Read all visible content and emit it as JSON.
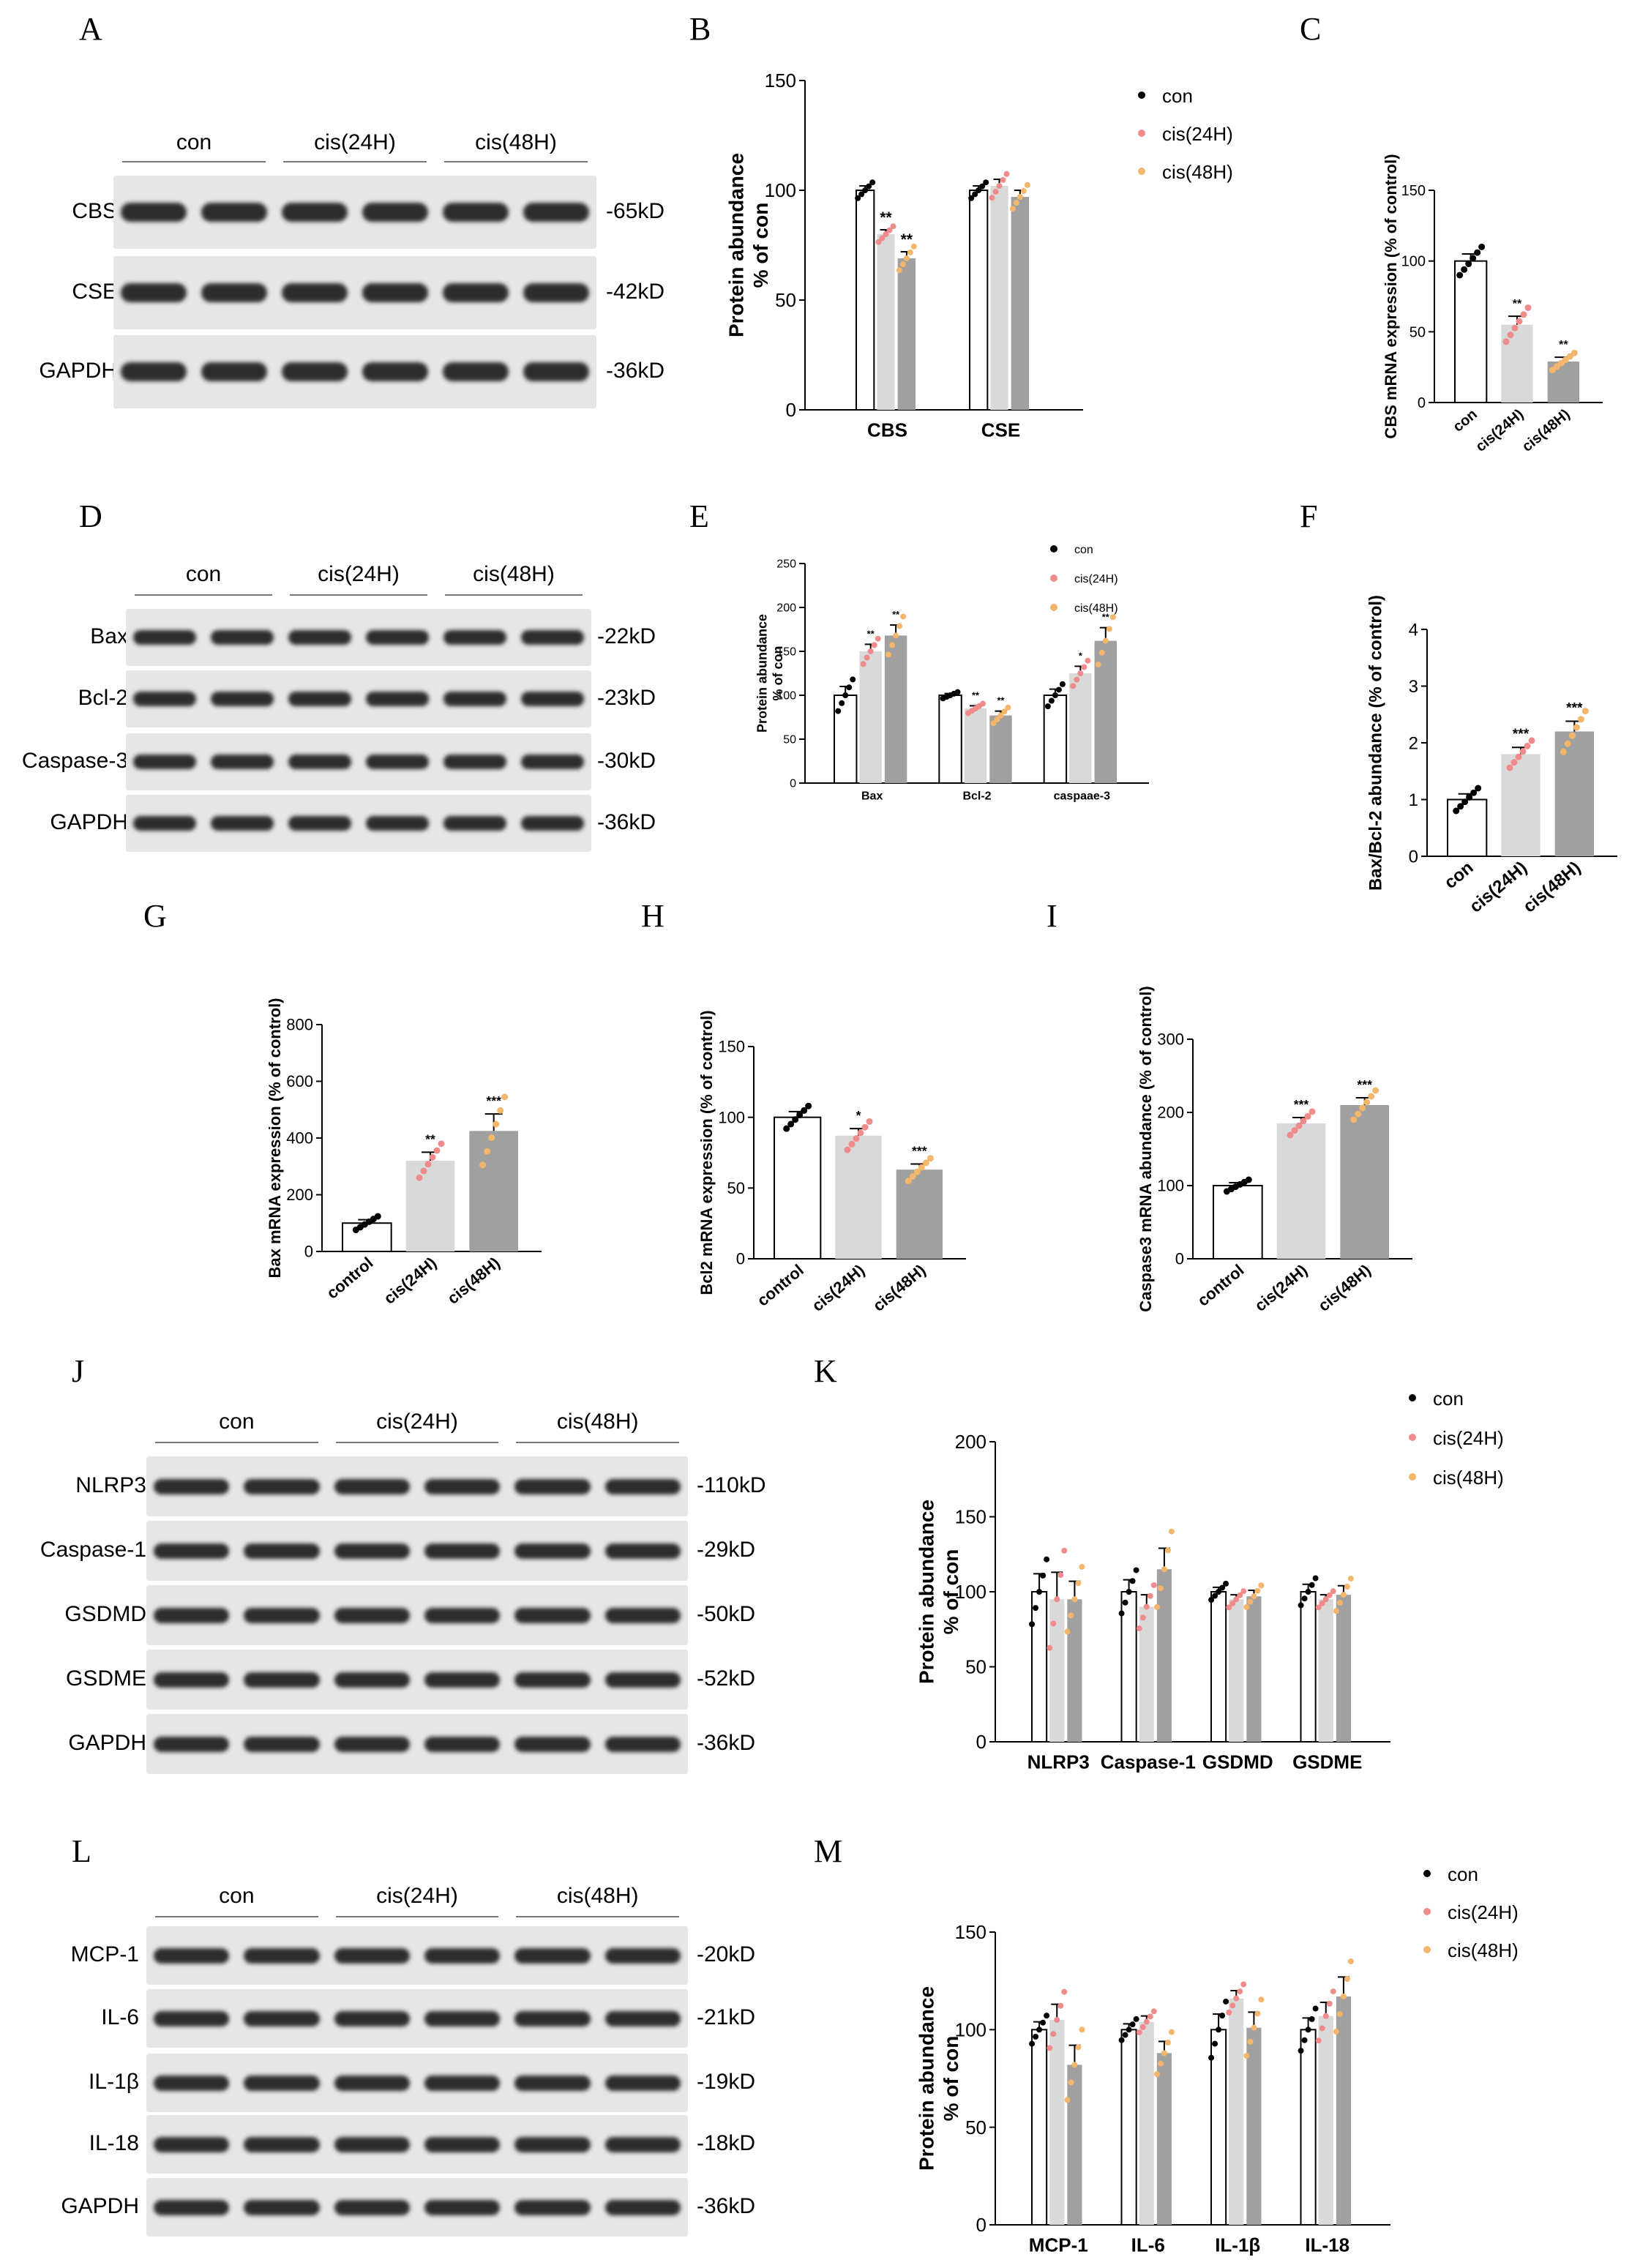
{
  "panel_labels": [
    "A",
    "B",
    "C",
    "D",
    "E",
    "F",
    "G",
    "H",
    "I",
    "J",
    "K",
    "L",
    "M"
  ],
  "colors": {
    "con": "#000000",
    "cis24": "#f08b8b",
    "cis48": "#f3b66b",
    "bar_con": "#ffffff",
    "bar_24": "#d9d9d9",
    "bar_48": "#a0a0a0"
  },
  "blots": {
    "A": {
      "headers": [
        "con",
        "cis(24H)",
        "cis(48H)"
      ],
      "rows": [
        {
          "label": "CBS",
          "kd": "-65kD"
        },
        {
          "label": "CSE",
          "kd": "-42kD"
        },
        {
          "label": "GAPDH",
          "kd": "-36kD"
        }
      ]
    },
    "D": {
      "headers": [
        "con",
        "cis(24H)",
        "cis(48H)"
      ],
      "rows": [
        {
          "label": "Bax",
          "kd": "-22kD"
        },
        {
          "label": "Bcl-2",
          "kd": "-23kD"
        },
        {
          "label": "Caspase-3",
          "kd": "-30kD"
        },
        {
          "label": "GAPDH",
          "kd": "-36kD"
        }
      ]
    },
    "J": {
      "headers": [
        "con",
        "cis(24H)",
        "cis(48H)"
      ],
      "rows": [
        {
          "label": "NLRP3",
          "kd": "-110kD"
        },
        {
          "label": "Caspase-1",
          "kd": "-29kD"
        },
        {
          "label": "GSDMD",
          "kd": "-50kD"
        },
        {
          "label": "GSDME",
          "kd": "-52kD"
        },
        {
          "label": "GAPDH",
          "kd": "-36kD"
        }
      ]
    },
    "L": {
      "headers": [
        "con",
        "cis(24H)",
        "cis(48H)"
      ],
      "rows": [
        {
          "label": "MCP-1",
          "kd": "-20kD"
        },
        {
          "label": "IL-6",
          "kd": "-21kD"
        },
        {
          "label": "IL-1β",
          "kd": "-19kD"
        },
        {
          "label": "IL-18",
          "kd": "-18kD"
        },
        {
          "label": "GAPDH",
          "kd": "-36kD"
        }
      ]
    }
  },
  "chart_data": [
    {
      "id": "B",
      "type": "bar",
      "categories": [
        "CBS",
        "CSE"
      ],
      "ylabel": "Protein abundance\n% of con",
      "ylim": [
        0,
        150
      ],
      "yticks": [
        0,
        50,
        100,
        150
      ],
      "legend": [
        "con",
        "cis(24H)",
        "cis(48H)"
      ],
      "series": [
        {
          "name": "con",
          "values": [
            100,
            100
          ],
          "err": [
            2,
            2
          ]
        },
        {
          "name": "cis(24H)",
          "values": [
            80,
            102
          ],
          "err": [
            2,
            3
          ]
        },
        {
          "name": "cis(48H)",
          "values": [
            69,
            97
          ],
          "err": [
            3,
            3
          ]
        }
      ],
      "sig": [
        [
          "",
          "**",
          "**"
        ],
        [
          "",
          "",
          ""
        ]
      ]
    },
    {
      "id": "C",
      "type": "bar",
      "categories": [
        "con",
        "cis(24H)",
        "cis(48H)"
      ],
      "ylabel": "CBS mRNA expression (% of control)",
      "ylim": [
        0,
        150
      ],
      "yticks": [
        0,
        50,
        100,
        150
      ],
      "values": [
        100,
        55,
        29
      ],
      "err": [
        5,
        6,
        3
      ],
      "sig": [
        "",
        "**",
        "**"
      ]
    },
    {
      "id": "E",
      "type": "bar",
      "categories": [
        "Bax",
        "Bcl-2",
        "caspaae-3"
      ],
      "ylabel": "Protein abundance\n% of con",
      "ylim": [
        0,
        250
      ],
      "yticks": [
        0,
        50,
        100,
        150,
        200,
        250
      ],
      "legend": [
        "con",
        "cis(24H)",
        "cis(48H)"
      ],
      "series": [
        {
          "name": "con",
          "values": [
            100,
            100,
            100
          ],
          "err": [
            10,
            2,
            7
          ]
        },
        {
          "name": "cis(24H)",
          "values": [
            150,
            85,
            125
          ],
          "err": [
            8,
            3,
            8
          ]
        },
        {
          "name": "cis(48H)",
          "values": [
            168,
            77,
            162
          ],
          "err": [
            12,
            5,
            15
          ]
        }
      ],
      "sig": [
        [
          "",
          "**",
          "**"
        ],
        [
          "",
          "**",
          "**"
        ],
        [
          "",
          "*",
          "**"
        ]
      ]
    },
    {
      "id": "F",
      "type": "bar",
      "categories": [
        "con",
        "cis(24H)",
        "cis(48H)"
      ],
      "ylabel": "Bax/Bcl-2 abundance (% of control)",
      "ylim": [
        0,
        4
      ],
      "yticks": [
        0,
        1,
        2,
        3,
        4
      ],
      "values": [
        1.0,
        1.8,
        2.2
      ],
      "err": [
        0.1,
        0.12,
        0.18
      ],
      "sig": [
        "",
        "***",
        "***"
      ]
    },
    {
      "id": "G",
      "type": "bar",
      "categories": [
        "control",
        "cis(24H)",
        "cis(48H)"
      ],
      "ylabel": "Bax mRNA expression (% of control)",
      "ylim": [
        0,
        800
      ],
      "yticks": [
        0,
        200,
        400,
        600,
        800
      ],
      "values": [
        100,
        320,
        425
      ],
      "err": [
        12,
        30,
        60
      ],
      "sig": [
        "",
        "**",
        "***"
      ]
    },
    {
      "id": "H",
      "type": "bar",
      "categories": [
        "control",
        "cis(24H)",
        "cis(48H)"
      ],
      "ylabel": "Bcl2 mRNA expression (% of control)",
      "ylim": [
        0,
        150
      ],
      "yticks": [
        0,
        50,
        100,
        150
      ],
      "values": [
        100,
        87,
        63
      ],
      "err": [
        4,
        5,
        4
      ],
      "sig": [
        "",
        "*",
        "***"
      ]
    },
    {
      "id": "I",
      "type": "bar",
      "categories": [
        "control",
        "cis(24H)",
        "cis(48H)"
      ],
      "ylabel": "Caspase3 mRNA abundance (% of control)",
      "ylim": [
        0,
        300
      ],
      "yticks": [
        0,
        100,
        200,
        300
      ],
      "values": [
        100,
        185,
        210
      ],
      "err": [
        4,
        8,
        10
      ],
      "sig": [
        "",
        "***",
        "***"
      ]
    },
    {
      "id": "K",
      "type": "bar",
      "categories": [
        "NLRP3",
        "Caspase-1",
        "GSDMD",
        "GSDME"
      ],
      "ylabel": "Protein abundance\n% of con",
      "ylim": [
        0,
        200
      ],
      "yticks": [
        0,
        50,
        100,
        150,
        200
      ],
      "legend": [
        "con",
        "cis(24H)",
        "cis(48H)"
      ],
      "series": [
        {
          "name": "con",
          "values": [
            100,
            100,
            100,
            100
          ],
          "err": [
            12,
            8,
            3,
            5
          ]
        },
        {
          "name": "cis(24H)",
          "values": [
            95,
            90,
            95,
            95
          ],
          "err": [
            18,
            8,
            3,
            3
          ]
        },
        {
          "name": "cis(48H)",
          "values": [
            95,
            115,
            97,
            98
          ],
          "err": [
            12,
            14,
            4,
            6
          ]
        }
      ],
      "sig": [
        [
          "",
          "",
          ""
        ],
        [
          "",
          "",
          ""
        ],
        [
          "",
          "",
          ""
        ],
        [
          "",
          "",
          ""
        ]
      ]
    },
    {
      "id": "M",
      "type": "bar",
      "categories": [
        "MCP-1",
        "IL-6",
        "IL-1β",
        "IL-18"
      ],
      "ylabel": "Protein abundance\n% of con",
      "ylim": [
        0,
        150
      ],
      "yticks": [
        0,
        50,
        100,
        150
      ],
      "legend": [
        "con",
        "cis(24H)",
        "cis(48H)"
      ],
      "series": [
        {
          "name": "con",
          "values": [
            100,
            100,
            100,
            100
          ],
          "err": [
            4,
            3,
            8,
            6
          ]
        },
        {
          "name": "cis(24H)",
          "values": [
            105,
            104,
            116,
            107
          ],
          "err": [
            8,
            3,
            4,
            7
          ]
        },
        {
          "name": "cis(48H)",
          "values": [
            82,
            88,
            101,
            117
          ],
          "err": [
            10,
            6,
            8,
            10
          ]
        }
      ],
      "sig": [
        [
          "",
          "",
          ""
        ],
        [
          "",
          "",
          ""
        ],
        [
          "",
          "",
          ""
        ],
        [
          "",
          "",
          ""
        ]
      ]
    }
  ]
}
